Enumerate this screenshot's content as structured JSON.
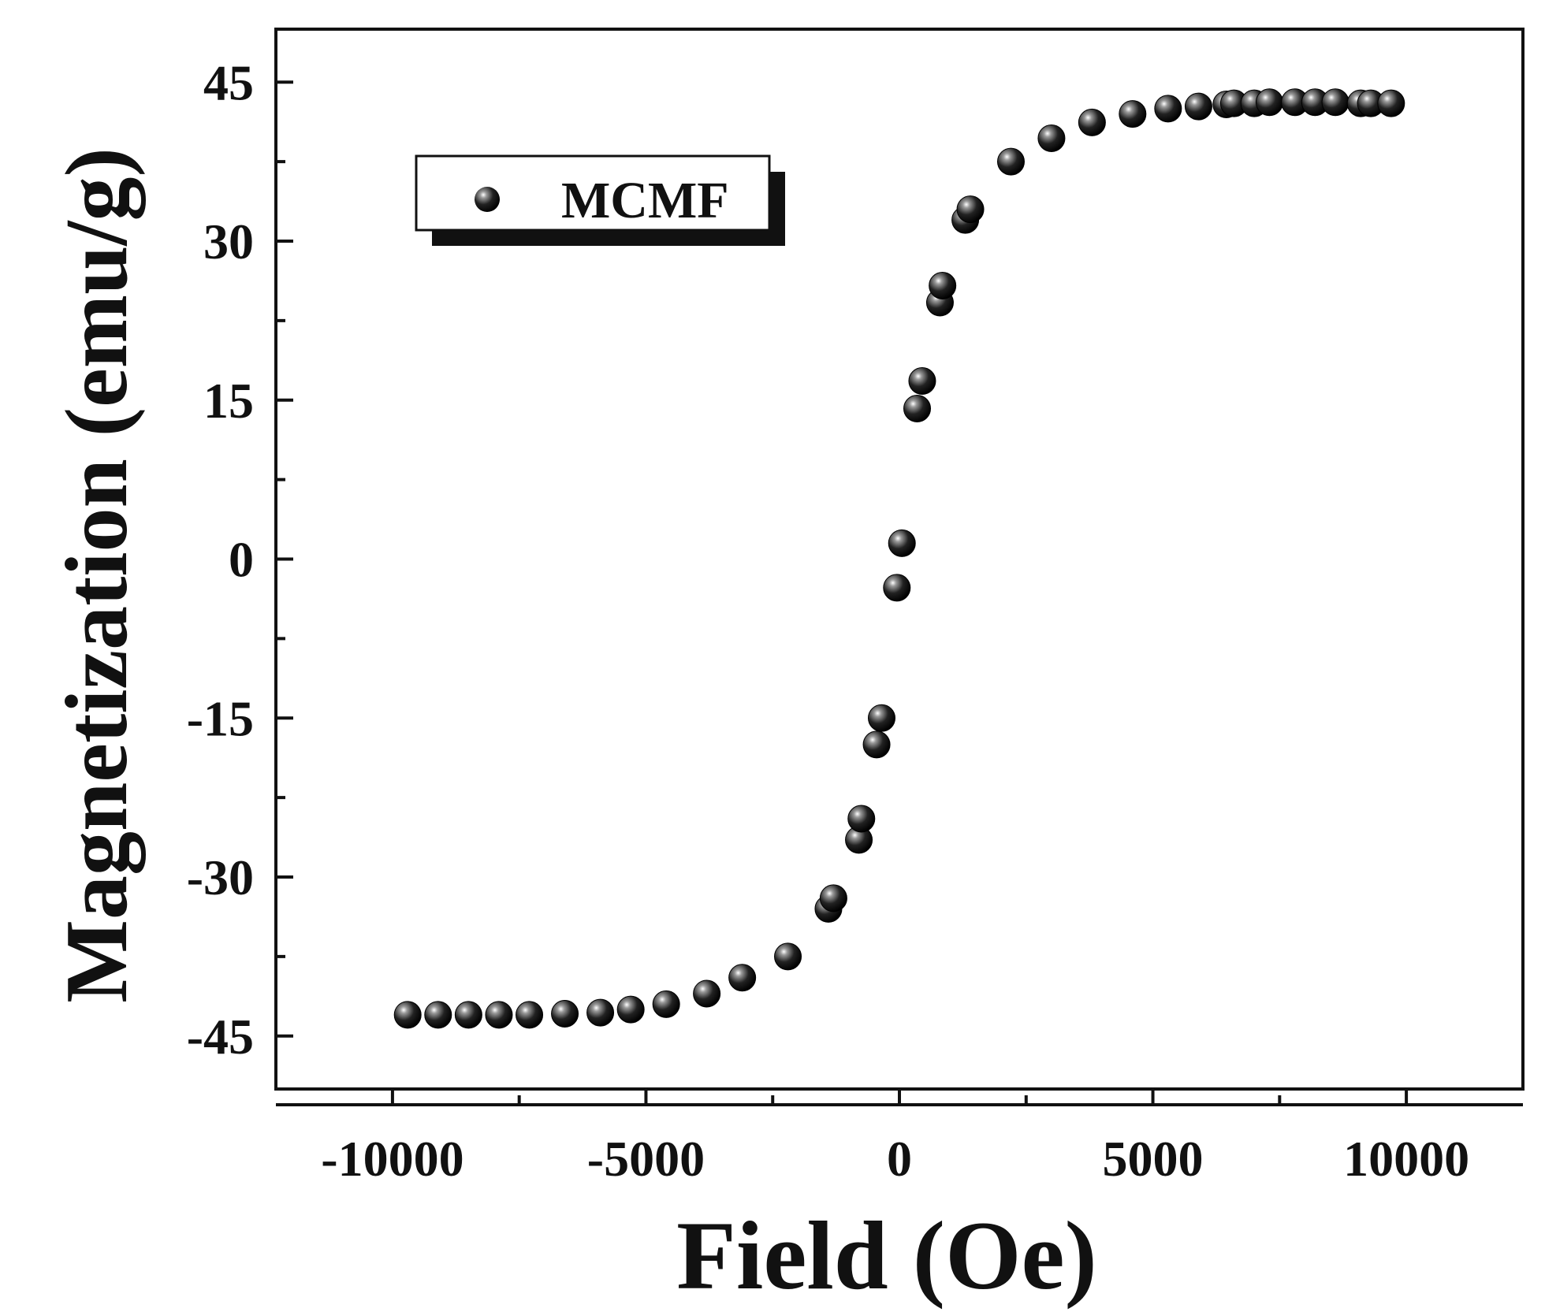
{
  "chart_data": {
    "type": "scatter",
    "title": "",
    "xlabel": "Field (Oe)",
    "ylabel": "Magnetization (emu/g)",
    "xlim": [
      -12300,
      12300
    ],
    "ylim": [
      -50,
      50
    ],
    "xticks": [
      -10000,
      -5000,
      0,
      5000,
      10000
    ],
    "xtick_labels": [
      "-10000",
      "-5000",
      "0",
      "5000",
      "10000"
    ],
    "yticks": [
      -45,
      -30,
      -15,
      0,
      15,
      30,
      45
    ],
    "ytick_labels": [
      "-45",
      "-30",
      "-15",
      "0",
      "15",
      "30",
      "45"
    ],
    "grid": false,
    "legend_position": "top-left",
    "series": [
      {
        "name": "MCMF",
        "marker": "sphere",
        "color": "#111111",
        "x": [
          -9700,
          -9100,
          -8500,
          -7900,
          -7300,
          -6600,
          -5900,
          -5300,
          -4600,
          -3800,
          -3100,
          -2200,
          -1400,
          -1300,
          -800,
          -750,
          -450,
          -350,
          -50,
          50,
          350,
          450,
          800,
          850,
          1300,
          1400,
          2200,
          3000,
          3800,
          4600,
          5300,
          5900,
          6450,
          6600,
          7000,
          7300,
          7800,
          8200,
          8600,
          9100,
          9300,
          9700
        ],
        "y": [
          -43,
          -43,
          -43,
          -43,
          -43,
          -42.9,
          -42.8,
          -42.5,
          -42,
          -41,
          -39.5,
          -37.5,
          -33,
          -32,
          -26.5,
          -24.5,
          -17.5,
          -15,
          -2.7,
          1.5,
          14.2,
          16.8,
          24.2,
          25.8,
          32,
          33,
          37.5,
          39.7,
          41.2,
          42,
          42.5,
          42.7,
          42.9,
          43,
          43,
          43.1,
          43.1,
          43.1,
          43.1,
          43,
          43,
          43
        ]
      }
    ]
  }
}
